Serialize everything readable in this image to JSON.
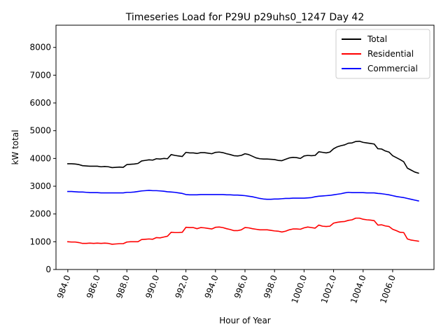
{
  "chart_data": {
    "type": "line",
    "title": "Timeseries Load for P29U p29uhs0_1247  Day 42",
    "xlabel": "Hour of Year",
    "ylabel": "kW total",
    "xlim": [
      983.2,
      1008.8
    ],
    "ylim": [
      0,
      8800
    ],
    "xticks": [
      984,
      986,
      988,
      990,
      992,
      994,
      996,
      998,
      1000,
      1002,
      1004,
      1006
    ],
    "xtick_labels": [
      "984.0",
      "986.0",
      "988.0",
      "990.0",
      "992.0",
      "994.0",
      "996.0",
      "998.0",
      "1000.0",
      "1002.0",
      "1004.0",
      "1006.0"
    ],
    "yticks": [
      0,
      1000,
      2000,
      3000,
      4000,
      5000,
      6000,
      7000,
      8000
    ],
    "ytick_labels": [
      "0",
      "1000",
      "2000",
      "3000",
      "4000",
      "5000",
      "6000",
      "7000",
      "8000"
    ],
    "legend_position": "top-right",
    "grid": false,
    "x": [
      984.0,
      984.25,
      984.5,
      984.75,
      985.0,
      985.25,
      985.5,
      985.75,
      986.0,
      986.25,
      986.5,
      986.75,
      987.0,
      987.25,
      987.5,
      987.75,
      988.0,
      988.25,
      988.5,
      988.75,
      989.0,
      989.25,
      989.5,
      989.75,
      990.0,
      990.25,
      990.5,
      990.75,
      991.0,
      991.25,
      991.5,
      991.75,
      992.0,
      992.25,
      992.5,
      992.75,
      993.0,
      993.25,
      993.5,
      993.75,
      994.0,
      994.25,
      994.5,
      994.75,
      995.0,
      995.25,
      995.5,
      995.75,
      996.0,
      996.25,
      996.5,
      996.75,
      997.0,
      997.25,
      997.5,
      997.75,
      998.0,
      998.25,
      998.5,
      998.75,
      999.0,
      999.25,
      999.5,
      999.75,
      1000.0,
      1000.25,
      1000.5,
      1000.75,
      1001.0,
      1001.25,
      1001.5,
      1001.75,
      1002.0,
      1002.25,
      1002.5,
      1002.75,
      1003.0,
      1003.25,
      1003.5,
      1003.75,
      1004.0,
      1004.25,
      1004.5,
      1004.75,
      1005.0,
      1005.25,
      1005.5,
      1005.75,
      1006.0,
      1006.25,
      1006.5,
      1006.75,
      1007.0,
      1007.25,
      1007.5,
      1007.75
    ],
    "series": [
      {
        "name": "Total",
        "color": "#000000",
        "values": [
          3810,
          3810,
          3800,
          3780,
          3740,
          3730,
          3720,
          3720,
          3720,
          3700,
          3710,
          3700,
          3670,
          3680,
          3690,
          3680,
          3780,
          3790,
          3800,
          3820,
          3910,
          3930,
          3950,
          3940,
          3990,
          3980,
          4000,
          3990,
          4140,
          4110,
          4090,
          4070,
          4220,
          4200,
          4200,
          4180,
          4210,
          4210,
          4190,
          4170,
          4220,
          4230,
          4210,
          4170,
          4140,
          4100,
          4090,
          4110,
          4170,
          4140,
          4080,
          4020,
          3990,
          3980,
          3980,
          3970,
          3960,
          3930,
          3920,
          3970,
          4020,
          4040,
          4030,
          4000,
          4090,
          4110,
          4100,
          4110,
          4240,
          4220,
          4200,
          4230,
          4350,
          4420,
          4460,
          4490,
          4550,
          4560,
          4610,
          4620,
          4580,
          4560,
          4540,
          4520,
          4350,
          4340,
          4270,
          4230,
          4100,
          4030,
          3960,
          3880,
          3650,
          3580,
          3510,
          3470
        ]
      },
      {
        "name": "Residential",
        "color": "#ff0000",
        "values": [
          1000,
          990,
          990,
          970,
          940,
          940,
          950,
          940,
          950,
          940,
          950,
          940,
          910,
          920,
          930,
          930,
          990,
          1000,
          1000,
          1000,
          1080,
          1090,
          1100,
          1090,
          1150,
          1140,
          1170,
          1200,
          1340,
          1330,
          1330,
          1340,
          1520,
          1510,
          1510,
          1470,
          1510,
          1500,
          1480,
          1460,
          1520,
          1530,
          1510,
          1470,
          1440,
          1400,
          1400,
          1430,
          1510,
          1500,
          1470,
          1450,
          1430,
          1430,
          1430,
          1410,
          1390,
          1380,
          1350,
          1380,
          1430,
          1460,
          1460,
          1450,
          1500,
          1530,
          1510,
          1490,
          1600,
          1560,
          1550,
          1560,
          1670,
          1700,
          1720,
          1730,
          1770,
          1790,
          1850,
          1850,
          1810,
          1790,
          1780,
          1760,
          1600,
          1610,
          1570,
          1550,
          1450,
          1400,
          1340,
          1330,
          1100,
          1060,
          1040,
          1020
        ]
      },
      {
        "name": "Commercial",
        "color": "#0000ff",
        "values": [
          2810,
          2810,
          2800,
          2790,
          2790,
          2780,
          2770,
          2770,
          2770,
          2760,
          2760,
          2760,
          2760,
          2760,
          2760,
          2760,
          2780,
          2780,
          2790,
          2810,
          2830,
          2840,
          2850,
          2840,
          2840,
          2830,
          2820,
          2800,
          2790,
          2780,
          2760,
          2740,
          2700,
          2690,
          2690,
          2690,
          2700,
          2700,
          2700,
          2700,
          2700,
          2700,
          2700,
          2690,
          2690,
          2680,
          2680,
          2670,
          2660,
          2640,
          2620,
          2590,
          2560,
          2540,
          2530,
          2530,
          2540,
          2540,
          2550,
          2560,
          2560,
          2570,
          2570,
          2570,
          2570,
          2580,
          2590,
          2620,
          2640,
          2650,
          2660,
          2670,
          2690,
          2710,
          2730,
          2760,
          2780,
          2770,
          2770,
          2770,
          2770,
          2760,
          2760,
          2760,
          2740,
          2730,
          2710,
          2690,
          2660,
          2630,
          2610,
          2590,
          2560,
          2530,
          2500,
          2470
        ]
      }
    ]
  }
}
